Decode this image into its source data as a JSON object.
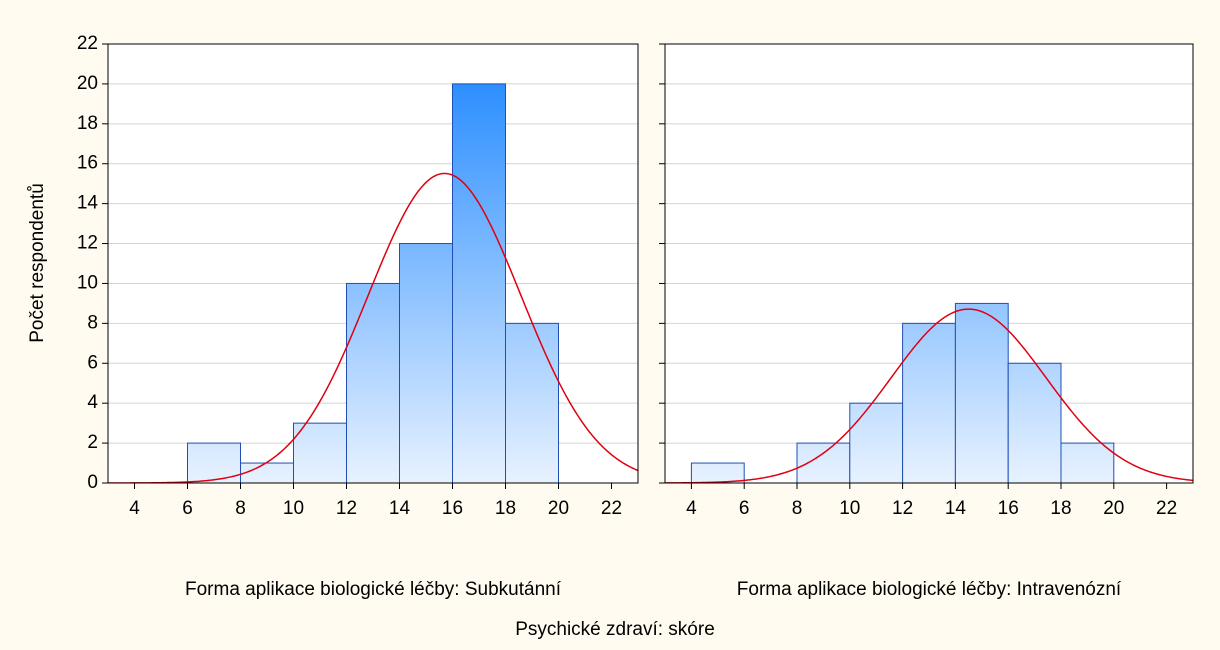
{
  "chart_data": [
    {
      "type": "histogram",
      "title": "Forma aplikace biologické léčby: Subkutánní",
      "bins": [
        6,
        8,
        10,
        12,
        14,
        16,
        18,
        20
      ],
      "counts": [
        2,
        1,
        3,
        10,
        12,
        20,
        8
      ],
      "xlim": [
        3,
        23
      ],
      "xticks": [
        4,
        6,
        8,
        10,
        12,
        14,
        16,
        18,
        20,
        22
      ],
      "ylim": [
        0,
        22
      ],
      "yticks": [
        0,
        2,
        4,
        6,
        8,
        10,
        12,
        14,
        16,
        18,
        20,
        22
      ],
      "grid": true,
      "normal_fit": {
        "mean": 15.7,
        "sd": 2.88
      },
      "bar_gradient": [
        "#1a85ff",
        "#e8f2ff"
      ],
      "edge_color": "#1f4fb5",
      "curve_color": "#e00010"
    },
    {
      "type": "histogram",
      "title": "Forma aplikace biologické léčby: Intravenózní",
      "bins": [
        4,
        6,
        8,
        10,
        12,
        14,
        16,
        18,
        20
      ],
      "counts": [
        1,
        0,
        2,
        4,
        8,
        9,
        6,
        2
      ],
      "xlim": [
        3,
        23
      ],
      "xticks": [
        4,
        6,
        8,
        10,
        12,
        14,
        16,
        18,
        20,
        22
      ],
      "ylim": [
        0,
        22
      ],
      "yticks": [
        0,
        2,
        4,
        6,
        8,
        10,
        12,
        14,
        16,
        18,
        20,
        22
      ],
      "grid": true,
      "normal_fit": {
        "mean": 14.5,
        "sd": 2.93
      },
      "bar_gradient": [
        "#1a85ff",
        "#e8f2ff"
      ],
      "edge_color": "#1f4fb5",
      "curve_color": "#e00010"
    }
  ],
  "shared": {
    "xlabel": "Psychické zdraví: skóre",
    "ylabel": "Počet respondentů"
  }
}
